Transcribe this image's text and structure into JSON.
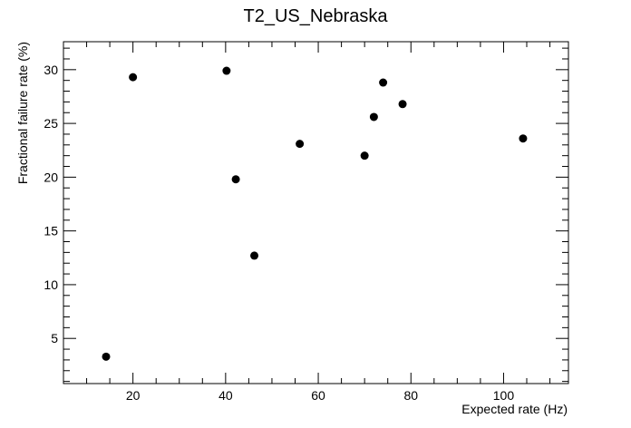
{
  "chart_data": {
    "type": "scatter",
    "title": "T2_US_Nebraska",
    "xlabel": "Expected rate (Hz)",
    "ylabel": "Fractional failure rate (%)",
    "xlim": [
      5,
      114
    ],
    "ylim": [
      0.8,
      32.6
    ],
    "x_major_ticks": [
      20,
      40,
      60,
      80,
      100
    ],
    "x_minor_step": 5,
    "y_major_ticks": [
      5,
      10,
      15,
      20,
      25,
      30
    ],
    "y_minor_step": 1,
    "grid": false,
    "legend": "none",
    "marker_color": "#000000",
    "points": [
      {
        "x": 14.2,
        "y": 3.3
      },
      {
        "x": 20.0,
        "y": 29.3
      },
      {
        "x": 40.2,
        "y": 29.9
      },
      {
        "x": 42.2,
        "y": 19.8
      },
      {
        "x": 46.2,
        "y": 12.7
      },
      {
        "x": 56.0,
        "y": 23.1
      },
      {
        "x": 70.0,
        "y": 22.0
      },
      {
        "x": 72.0,
        "y": 25.6
      },
      {
        "x": 74.0,
        "y": 28.8
      },
      {
        "x": 78.2,
        "y": 26.8
      },
      {
        "x": 104.2,
        "y": 23.6
      }
    ]
  }
}
